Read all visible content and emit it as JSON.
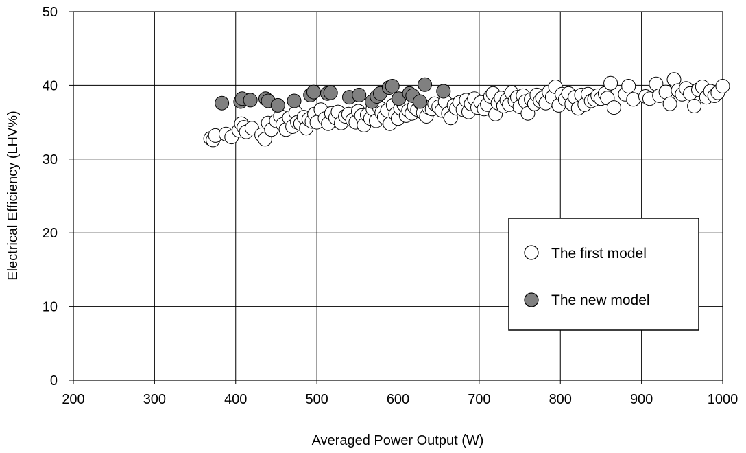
{
  "chart_data": {
    "type": "scatter",
    "title": "",
    "xlabel": "Averaged Power Output (W)",
    "ylabel": "Electrical Efficiency (LHV%)",
    "xlim": [
      200,
      1000
    ],
    "ylim": [
      0,
      50
    ],
    "x_ticks": [
      "200",
      "300",
      "400",
      "500",
      "600",
      "700",
      "800",
      "900",
      "1000"
    ],
    "y_ticks": [
      "0",
      "10",
      "20",
      "30",
      "40",
      "50"
    ],
    "grid": true,
    "legend_position": "lower-right",
    "series": [
      {
        "name": "The first model",
        "fill": "#ffffff",
        "stroke": "#000000",
        "points": [
          [
            369,
            32.8
          ],
          [
            372,
            32.6
          ],
          [
            375,
            33.2
          ],
          [
            388,
            33.4
          ],
          [
            395,
            33.0
          ],
          [
            404,
            33.9
          ],
          [
            407,
            34.8
          ],
          [
            410,
            34.3
          ],
          [
            413,
            33.7
          ],
          [
            420,
            34.2
          ],
          [
            432,
            33.3
          ],
          [
            436,
            32.7
          ],
          [
            440,
            34.9
          ],
          [
            444,
            34.0
          ],
          [
            450,
            35.2
          ],
          [
            455,
            35.8
          ],
          [
            458,
            34.7
          ],
          [
            462,
            34.0
          ],
          [
            466,
            35.6
          ],
          [
            470,
            34.4
          ],
          [
            474,
            36.3
          ],
          [
            476,
            35.0
          ],
          [
            480,
            34.8
          ],
          [
            484,
            35.7
          ],
          [
            487,
            34.2
          ],
          [
            490,
            35.4
          ],
          [
            494,
            35.1
          ],
          [
            497,
            36.1
          ],
          [
            500,
            35.0
          ],
          [
            505,
            36.7
          ],
          [
            510,
            35.5
          ],
          [
            514,
            34.8
          ],
          [
            518,
            36.2
          ],
          [
            523,
            35.6
          ],
          [
            526,
            36.4
          ],
          [
            530,
            34.9
          ],
          [
            535,
            35.8
          ],
          [
            539,
            36.1
          ],
          [
            544,
            35.3
          ],
          [
            548,
            35.0
          ],
          [
            551,
            36.5
          ],
          [
            555,
            35.9
          ],
          [
            558,
            34.6
          ],
          [
            562,
            36.0
          ],
          [
            566,
            35.5
          ],
          [
            569,
            36.8
          ],
          [
            573,
            35.2
          ],
          [
            577,
            37.0
          ],
          [
            580,
            36.3
          ],
          [
            583,
            35.7
          ],
          [
            587,
            36.6
          ],
          [
            590,
            34.8
          ],
          [
            594,
            37.3
          ],
          [
            597,
            36.1
          ],
          [
            600,
            35.5
          ],
          [
            603,
            36.9
          ],
          [
            607,
            37.4
          ],
          [
            610,
            35.9
          ],
          [
            613,
            36.6
          ],
          [
            617,
            36.2
          ],
          [
            620,
            37.1
          ],
          [
            624,
            36.7
          ],
          [
            628,
            37.6
          ],
          [
            631,
            36.3
          ],
          [
            635,
            35.8
          ],
          [
            638,
            37.0
          ],
          [
            642,
            36.8
          ],
          [
            645,
            37.5
          ],
          [
            650,
            37.1
          ],
          [
            654,
            36.6
          ],
          [
            658,
            37.8
          ],
          [
            662,
            36.2
          ],
          [
            665,
            35.6
          ],
          [
            669,
            37.3
          ],
          [
            672,
            36.9
          ],
          [
            676,
            37.7
          ],
          [
            680,
            36.7
          ],
          [
            684,
            38.0
          ],
          [
            687,
            36.4
          ],
          [
            690,
            37.5
          ],
          [
            694,
            38.2
          ],
          [
            698,
            37.0
          ],
          [
            702,
            37.7
          ],
          [
            706,
            36.8
          ],
          [
            710,
            37.4
          ],
          [
            714,
            38.5
          ],
          [
            717,
            38.9
          ],
          [
            720,
            36.1
          ],
          [
            723,
            37.6
          ],
          [
            727,
            38.3
          ],
          [
            730,
            37.2
          ],
          [
            734,
            38.0
          ],
          [
            737,
            37.4
          ],
          [
            740,
            39.0
          ],
          [
            744,
            37.9
          ],
          [
            747,
            38.4
          ],
          [
            750,
            37.1
          ],
          [
            754,
            38.6
          ],
          [
            757,
            37.8
          ],
          [
            760,
            36.2
          ],
          [
            764,
            38.1
          ],
          [
            768,
            37.5
          ],
          [
            771,
            38.7
          ],
          [
            775,
            37.9
          ],
          [
            778,
            38.3
          ],
          [
            782,
            37.6
          ],
          [
            786,
            39.1
          ],
          [
            790,
            38.4
          ],
          [
            794,
            39.8
          ],
          [
            798,
            37.3
          ],
          [
            802,
            38.8
          ],
          [
            806,
            38.1
          ],
          [
            810,
            38.9
          ],
          [
            814,
            37.5
          ],
          [
            818,
            38.4
          ],
          [
            822,
            36.9
          ],
          [
            826,
            38.7
          ],
          [
            830,
            37.4
          ],
          [
            834,
            38.8
          ],
          [
            838,
            37.9
          ],
          [
            842,
            38.1
          ],
          [
            846,
            38.6
          ],
          [
            850,
            38.2
          ],
          [
            855,
            38.9
          ],
          [
            858,
            38.3
          ],
          [
            862,
            40.3
          ],
          [
            866,
            37.0
          ],
          [
            880,
            38.8
          ],
          [
            884,
            39.9
          ],
          [
            890,
            38.1
          ],
          [
            905,
            38.5
          ],
          [
            910,
            38.2
          ],
          [
            918,
            40.2
          ],
          [
            922,
            38.6
          ],
          [
            930,
            39.1
          ],
          [
            935,
            37.5
          ],
          [
            940,
            40.8
          ],
          [
            945,
            39.3
          ],
          [
            950,
            38.8
          ],
          [
            955,
            39.6
          ],
          [
            960,
            38.9
          ],
          [
            965,
            37.2
          ],
          [
            970,
            39.4
          ],
          [
            975,
            39.8
          ],
          [
            980,
            38.4
          ],
          [
            985,
            39.2
          ],
          [
            990,
            38.6
          ],
          [
            994,
            39.0
          ],
          [
            1000,
            39.9
          ]
        ]
      },
      {
        "name": "The new model",
        "fill": "#808080",
        "stroke": "#000000",
        "points": [
          [
            383,
            37.6
          ],
          [
            406,
            37.8
          ],
          [
            408,
            38.2
          ],
          [
            418,
            38.0
          ],
          [
            437,
            38.2
          ],
          [
            440,
            37.9
          ],
          [
            452,
            37.3
          ],
          [
            472,
            37.9
          ],
          [
            492,
            38.7
          ],
          [
            496,
            39.1
          ],
          [
            513,
            38.9
          ],
          [
            517,
            39.0
          ],
          [
            540,
            38.4
          ],
          [
            552,
            38.7
          ],
          [
            568,
            37.8
          ],
          [
            574,
            38.5
          ],
          [
            578,
            38.9
          ],
          [
            589,
            39.7
          ],
          [
            593,
            39.9
          ],
          [
            601,
            38.2
          ],
          [
            614,
            38.9
          ],
          [
            618,
            38.6
          ],
          [
            627,
            37.8
          ],
          [
            633,
            40.1
          ],
          [
            656,
            39.2
          ]
        ]
      }
    ]
  }
}
